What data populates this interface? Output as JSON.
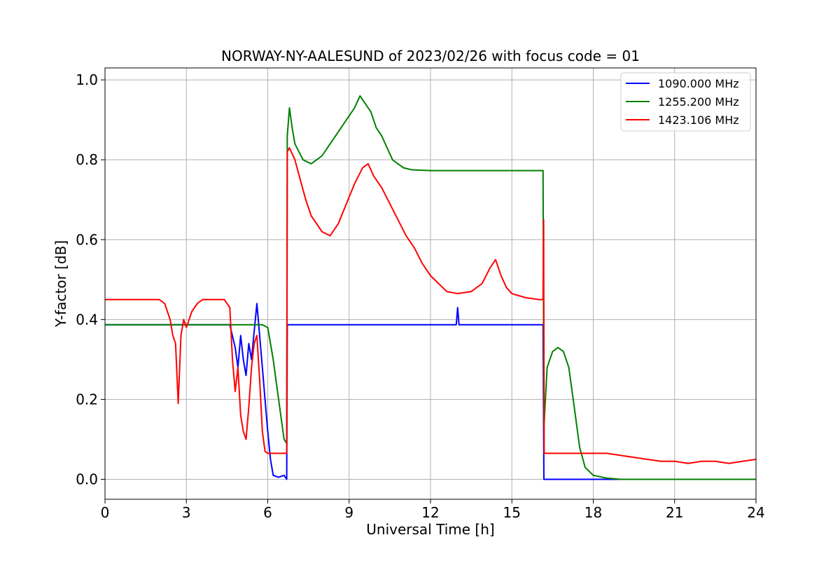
{
  "chart_data": {
    "type": "line",
    "title": "NORWAY-NY-AALESUND of 2023/02/26 with focus code = 01",
    "xlabel": "Universal Time [h]",
    "ylabel": "Y-factor [dB]",
    "xlim": [
      0,
      24
    ],
    "ylim": [
      -0.05,
      1.03
    ],
    "xticks": [
      0,
      3,
      6,
      9,
      12,
      15,
      18,
      21,
      24
    ],
    "yticks": [
      0.0,
      0.2,
      0.4,
      0.6,
      0.8,
      1.0
    ],
    "xtick_labels": [
      "0",
      "3",
      "6",
      "9",
      "12",
      "15",
      "18",
      "21",
      "24"
    ],
    "ytick_labels": [
      "0.0",
      "0.2",
      "0.4",
      "0.6",
      "0.8",
      "1.0"
    ],
    "grid": true,
    "legend_position": "top-right",
    "series": [
      {
        "name": "1090.000 MHz",
        "color": "#0000ff",
        "points": [
          [
            0,
            0.387
          ],
          [
            1.0,
            0.387
          ],
          [
            2.0,
            0.387
          ],
          [
            3.0,
            0.387
          ],
          [
            4.0,
            0.387
          ],
          [
            4.6,
            0.387
          ],
          [
            4.8,
            0.33
          ],
          [
            4.9,
            0.28
          ],
          [
            5.0,
            0.36
          ],
          [
            5.1,
            0.3
          ],
          [
            5.2,
            0.26
          ],
          [
            5.3,
            0.34
          ],
          [
            5.4,
            0.3
          ],
          [
            5.5,
            0.37
          ],
          [
            5.6,
            0.44
          ],
          [
            5.7,
            0.36
          ],
          [
            5.8,
            0.28
          ],
          [
            5.9,
            0.2
          ],
          [
            6.0,
            0.12
          ],
          [
            6.1,
            0.05
          ],
          [
            6.2,
            0.01
          ],
          [
            6.4,
            0.005
          ],
          [
            6.6,
            0.01
          ],
          [
            6.7,
            0.0
          ],
          [
            6.72,
            0.387
          ],
          [
            8.0,
            0.387
          ],
          [
            10.0,
            0.387
          ],
          [
            12.0,
            0.387
          ],
          [
            12.95,
            0.387
          ],
          [
            13.0,
            0.43
          ],
          [
            13.05,
            0.387
          ],
          [
            14.0,
            0.387
          ],
          [
            15.0,
            0.387
          ],
          [
            16.0,
            0.387
          ],
          [
            16.15,
            0.387
          ],
          [
            16.18,
            0.0
          ],
          [
            17.0,
            0.0
          ],
          [
            18.0,
            0.0
          ],
          [
            20.0,
            0.0
          ],
          [
            22.0,
            0.0
          ],
          [
            24.0,
            0.0
          ]
        ]
      },
      {
        "name": "1255.200 MHz",
        "color": "#008000",
        "points": [
          [
            0,
            0.387
          ],
          [
            1.0,
            0.387
          ],
          [
            2.0,
            0.387
          ],
          [
            3.0,
            0.387
          ],
          [
            4.0,
            0.387
          ],
          [
            5.0,
            0.387
          ],
          [
            5.8,
            0.387
          ],
          [
            6.0,
            0.38
          ],
          [
            6.2,
            0.3
          ],
          [
            6.3,
            0.25
          ],
          [
            6.4,
            0.2
          ],
          [
            6.5,
            0.15
          ],
          [
            6.6,
            0.1
          ],
          [
            6.7,
            0.09
          ],
          [
            6.72,
            0.86
          ],
          [
            6.8,
            0.93
          ],
          [
            6.9,
            0.88
          ],
          [
            7.0,
            0.84
          ],
          [
            7.3,
            0.8
          ],
          [
            7.6,
            0.79
          ],
          [
            8.0,
            0.81
          ],
          [
            8.3,
            0.84
          ],
          [
            8.6,
            0.87
          ],
          [
            8.9,
            0.9
          ],
          [
            9.2,
            0.93
          ],
          [
            9.4,
            0.96
          ],
          [
            9.6,
            0.94
          ],
          [
            9.8,
            0.92
          ],
          [
            10.0,
            0.88
          ],
          [
            10.2,
            0.86
          ],
          [
            10.4,
            0.83
          ],
          [
            10.6,
            0.8
          ],
          [
            10.8,
            0.79
          ],
          [
            11.0,
            0.78
          ],
          [
            11.3,
            0.775
          ],
          [
            11.6,
            0.774
          ],
          [
            12.0,
            0.773
          ],
          [
            13.0,
            0.773
          ],
          [
            14.0,
            0.773
          ],
          [
            15.0,
            0.773
          ],
          [
            16.0,
            0.773
          ],
          [
            16.15,
            0.773
          ],
          [
            16.18,
            0.13
          ],
          [
            16.3,
            0.28
          ],
          [
            16.5,
            0.32
          ],
          [
            16.7,
            0.33
          ],
          [
            16.9,
            0.32
          ],
          [
            17.1,
            0.28
          ],
          [
            17.3,
            0.18
          ],
          [
            17.5,
            0.08
          ],
          [
            17.7,
            0.03
          ],
          [
            18.0,
            0.01
          ],
          [
            18.5,
            0.003
          ],
          [
            19.0,
            0.0
          ],
          [
            20.0,
            0.0
          ],
          [
            22.0,
            0.0
          ],
          [
            24.0,
            0.0
          ]
        ]
      },
      {
        "name": "1423.106 MHz",
        "color": "#ff0000",
        "points": [
          [
            0,
            0.45
          ],
          [
            1.0,
            0.45
          ],
          [
            2.0,
            0.45
          ],
          [
            2.2,
            0.44
          ],
          [
            2.4,
            0.4
          ],
          [
            2.5,
            0.36
          ],
          [
            2.6,
            0.34
          ],
          [
            2.7,
            0.19
          ],
          [
            2.8,
            0.36
          ],
          [
            2.9,
            0.4
          ],
          [
            3.0,
            0.38
          ],
          [
            3.2,
            0.42
          ],
          [
            3.4,
            0.44
          ],
          [
            3.6,
            0.45
          ],
          [
            4.0,
            0.45
          ],
          [
            4.4,
            0.45
          ],
          [
            4.6,
            0.43
          ],
          [
            4.7,
            0.3
          ],
          [
            4.8,
            0.22
          ],
          [
            4.9,
            0.28
          ],
          [
            5.0,
            0.16
          ],
          [
            5.1,
            0.12
          ],
          [
            5.2,
            0.1
          ],
          [
            5.3,
            0.18
          ],
          [
            5.4,
            0.28
          ],
          [
            5.5,
            0.34
          ],
          [
            5.6,
            0.36
          ],
          [
            5.7,
            0.25
          ],
          [
            5.8,
            0.12
          ],
          [
            5.9,
            0.07
          ],
          [
            6.0,
            0.065
          ],
          [
            6.5,
            0.065
          ],
          [
            6.7,
            0.065
          ],
          [
            6.72,
            0.82
          ],
          [
            6.8,
            0.83
          ],
          [
            7.0,
            0.8
          ],
          [
            7.2,
            0.75
          ],
          [
            7.4,
            0.7
          ],
          [
            7.6,
            0.66
          ],
          [
            7.8,
            0.64
          ],
          [
            8.0,
            0.62
          ],
          [
            8.3,
            0.61
          ],
          [
            8.6,
            0.64
          ],
          [
            8.9,
            0.69
          ],
          [
            9.2,
            0.74
          ],
          [
            9.5,
            0.78
          ],
          [
            9.7,
            0.79
          ],
          [
            9.9,
            0.76
          ],
          [
            10.2,
            0.73
          ],
          [
            10.5,
            0.69
          ],
          [
            10.8,
            0.65
          ],
          [
            11.1,
            0.61
          ],
          [
            11.4,
            0.58
          ],
          [
            11.7,
            0.54
          ],
          [
            12.0,
            0.51
          ],
          [
            12.3,
            0.49
          ],
          [
            12.6,
            0.47
          ],
          [
            13.0,
            0.465
          ],
          [
            13.5,
            0.47
          ],
          [
            13.9,
            0.49
          ],
          [
            14.2,
            0.53
          ],
          [
            14.4,
            0.55
          ],
          [
            14.6,
            0.51
          ],
          [
            14.8,
            0.48
          ],
          [
            15.0,
            0.465
          ],
          [
            15.5,
            0.455
          ],
          [
            16.0,
            0.45
          ],
          [
            16.15,
            0.45
          ],
          [
            16.17,
            0.65
          ],
          [
            16.19,
            0.065
          ],
          [
            17.0,
            0.065
          ],
          [
            18.0,
            0.065
          ],
          [
            18.5,
            0.065
          ],
          [
            19.0,
            0.06
          ],
          [
            19.5,
            0.055
          ],
          [
            20.0,
            0.05
          ],
          [
            20.5,
            0.045
          ],
          [
            21.0,
            0.045
          ],
          [
            21.5,
            0.04
          ],
          [
            22.0,
            0.045
          ],
          [
            22.5,
            0.045
          ],
          [
            23.0,
            0.04
          ],
          [
            23.5,
            0.045
          ],
          [
            24.0,
            0.05
          ]
        ]
      }
    ]
  }
}
